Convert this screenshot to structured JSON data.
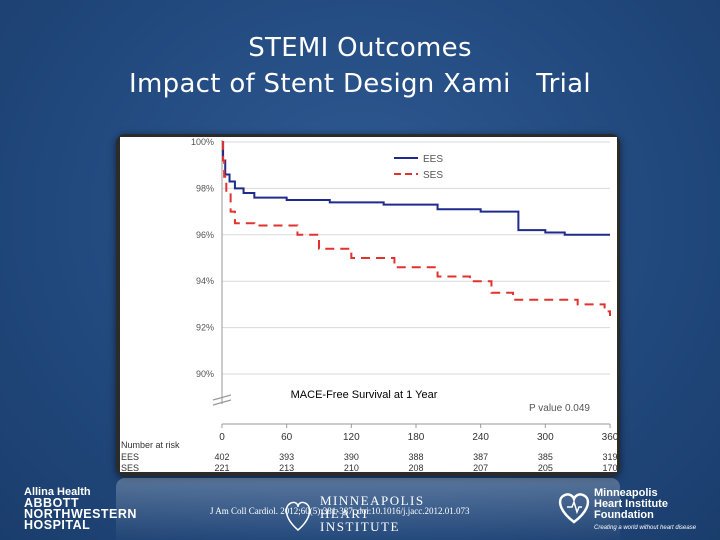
{
  "slide": {
    "title_line1": "STEMI Outcomes",
    "title_line2": "Impact of Stent Design Xami   Trial",
    "citation": "J Am Coll Cardiol. 2012;60(5):381-387. doi:10.1016/j.jacc.2012.01.073"
  },
  "logos": {
    "allina": "Allina Health",
    "anw_line1": "ABBOTT",
    "anw_line2": "NORTHWESTERN",
    "anw_line3": "HOSPITAL",
    "mhi_line1": "MINNEAPOLIS",
    "mhi_line2": "HEART",
    "mhi_line3": "INSTITUTE",
    "mhif_line1": "Minneapolis",
    "mhif_line2": "Heart Institute",
    "mhif_line3": "Foundation",
    "mhif_tagline": "Creating a world without heart disease"
  },
  "chart_data": {
    "type": "line",
    "title": "MACE-Free Survival at 1 Year",
    "xlabel": "",
    "ylabel": "",
    "xlim": [
      0,
      360
    ],
    "ylim": [
      90,
      100
    ],
    "y_ticks": [
      100,
      98,
      96,
      94,
      92,
      90
    ],
    "y_tick_labels": [
      "100%",
      "98%",
      "96%",
      "94%",
      "92%",
      "90%"
    ],
    "x_ticks": [
      0,
      60,
      120,
      180,
      240,
      300,
      360
    ],
    "x_tick_labels": [
      "0",
      "60",
      "120",
      "180",
      "240",
      "300",
      "360"
    ],
    "p_value": "P value 0.049",
    "legend": {
      "position": "top-right",
      "entries": [
        "EES",
        "SES"
      ]
    },
    "series": [
      {
        "name": "EES",
        "color": "#1f2a8c",
        "dash": "solid",
        "points": [
          [
            0,
            100
          ],
          [
            1,
            99.2
          ],
          [
            3,
            98.6
          ],
          [
            7,
            98.3
          ],
          [
            12,
            98.0
          ],
          [
            20,
            97.8
          ],
          [
            30,
            97.6
          ],
          [
            60,
            97.5
          ],
          [
            100,
            97.4
          ],
          [
            150,
            97.3
          ],
          [
            200,
            97.1
          ],
          [
            240,
            97.0
          ],
          [
            275,
            96.2
          ],
          [
            300,
            96.1
          ],
          [
            318,
            96.0
          ],
          [
            360,
            96.0
          ]
        ]
      },
      {
        "name": "SES",
        "color": "#e0322e",
        "dash": "dashed",
        "points": [
          [
            0,
            100
          ],
          [
            1,
            99.2
          ],
          [
            2,
            98.5
          ],
          [
            4,
            97.8
          ],
          [
            8,
            97.0
          ],
          [
            12,
            96.5
          ],
          [
            30,
            96.4
          ],
          [
            70,
            96.0
          ],
          [
            90,
            95.4
          ],
          [
            120,
            95.0
          ],
          [
            160,
            94.6
          ],
          [
            200,
            94.2
          ],
          [
            230,
            94.0
          ],
          [
            250,
            93.5
          ],
          [
            270,
            93.2
          ],
          [
            330,
            93.0
          ],
          [
            355,
            92.7
          ],
          [
            360,
            92.5
          ]
        ]
      }
    ],
    "risk_table": {
      "header": "Number at risk",
      "rows": [
        {
          "label": "EES",
          "values": [
            "402",
            "393",
            "390",
            "388",
            "387",
            "385",
            "319"
          ]
        },
        {
          "label": "SES",
          "values": [
            "221",
            "213",
            "210",
            "208",
            "207",
            "205",
            "170"
          ]
        }
      ]
    }
  }
}
